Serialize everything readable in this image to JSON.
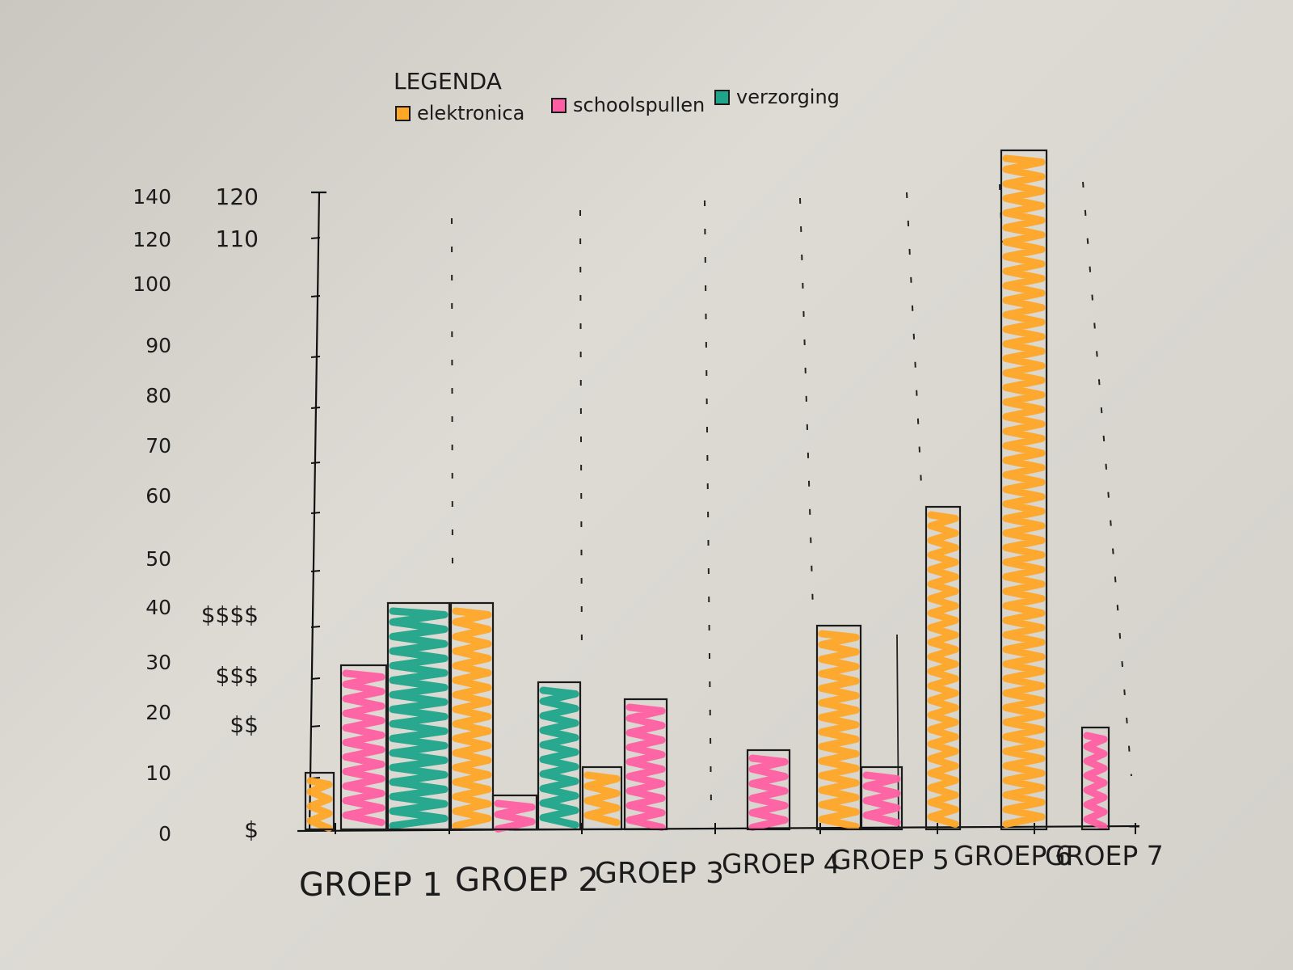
{
  "chart_data": {
    "type": "bar",
    "legend": {
      "title": "LEGENDA",
      "placement": "top",
      "items": [
        {
          "label": "elektronica",
          "color": "#ffa726"
        },
        {
          "label": "schoolspullen",
          "color": "#ff5fa2"
        },
        {
          "label": "verzorging",
          "color": "#1fa58a"
        }
      ]
    },
    "categories": [
      "GROEP 1",
      "GROEP 2",
      "GROEP 3",
      "GROEP 4",
      "GROEP 5",
      "GROEP 6",
      "GROEP 7"
    ],
    "bars": [
      {
        "group": 0,
        "series": 0,
        "value": 10
      },
      {
        "group": 0,
        "series": 1,
        "value": 29
      },
      {
        "group": 0,
        "series": 2,
        "value": 40
      },
      {
        "group": 1,
        "series": 0,
        "value": 40
      },
      {
        "group": 1,
        "series": 1,
        "value": 6
      },
      {
        "group": 1,
        "series": 2,
        "value": 26
      },
      {
        "group": 2,
        "series": 0,
        "value": 11
      },
      {
        "group": 2,
        "series": 1,
        "value": 23
      },
      {
        "group": 3,
        "series": 1,
        "value": 14
      },
      {
        "group": 4,
        "series": 0,
        "value": 36
      },
      {
        "group": 4,
        "series": 1,
        "value": 11
      },
      {
        "group": 5,
        "series": 0,
        "value": 57
      },
      {
        "group": 5,
        "series": 0,
        "value": 120
      },
      {
        "group": 6,
        "series": 1,
        "value": 18
      }
    ],
    "y_ticks_left": [
      "0",
      "10",
      "20",
      "30",
      "40",
      "50",
      "60",
      "70",
      "80",
      "90",
      "100",
      "120",
      "140"
    ],
    "y_ticks_right": [
      "$",
      "$$",
      "$$$",
      "$$$$",
      "110",
      "120"
    ],
    "ylim": [
      0,
      140
    ],
    "grid": false
  }
}
